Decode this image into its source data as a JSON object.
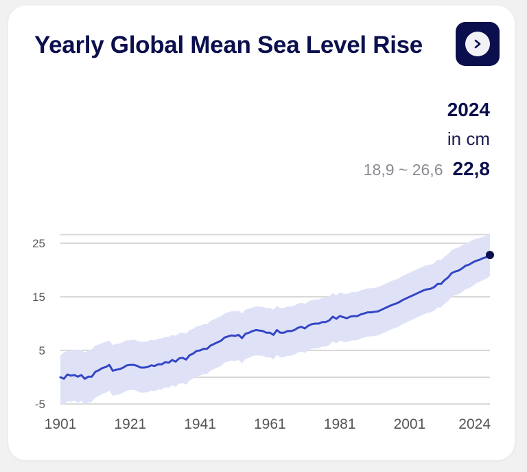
{
  "card": {
    "title": "Yearly Global Mean Sea Level Rise",
    "next_button_label": "Next",
    "next_icon": "chevron-right-icon"
  },
  "summary": {
    "year": "2024",
    "unit": "in cm",
    "range": "18,9 ~ 26,6",
    "value": "22,8"
  },
  "colors": {
    "title": "#0b0f4d",
    "line": "#3346c4",
    "band": "#dfe2f7",
    "endpoint": "#0b0f4d",
    "grid": "#d8d8d8"
  },
  "chart_data": {
    "type": "area",
    "title": "Yearly Global Mean Sea Level Rise",
    "xlabel": "",
    "ylabel": "cm",
    "xlim": [
      1901,
      2024
    ],
    "ylim": [
      -5,
      26.6
    ],
    "y_ticks": [
      25,
      15,
      5,
      -5
    ],
    "y_gridlines": [
      26.6,
      25,
      15,
      5,
      0,
      -5
    ],
    "x_ticks": [
      "1901",
      "1921",
      "1941",
      "1961",
      "1981",
      "2001",
      "2024"
    ],
    "grid": true,
    "highlight": {
      "year": 2024,
      "value": 22.8,
      "lower": 18.9,
      "upper": 26.6
    },
    "x_start": 1901,
    "series": [
      {
        "name": "mean",
        "values": [
          0.0,
          -0.3,
          0.5,
          0.3,
          0.4,
          0.1,
          0.4,
          -0.3,
          0.1,
          0.1,
          1.0,
          1.3,
          1.7,
          1.9,
          2.3,
          1.2,
          1.4,
          1.5,
          1.8,
          2.2,
          2.3,
          2.3,
          2.1,
          1.8,
          1.8,
          1.9,
          2.2,
          2.1,
          2.4,
          2.4,
          2.8,
          2.7,
          3.2,
          2.9,
          3.5,
          3.6,
          3.3,
          4.1,
          4.4,
          4.9,
          5.0,
          5.3,
          5.3,
          5.9,
          6.2,
          6.5,
          6.8,
          7.4,
          7.6,
          7.8,
          7.7,
          7.9,
          7.3,
          8.1,
          8.3,
          8.6,
          8.8,
          8.7,
          8.6,
          8.3,
          8.3,
          7.9,
          8.8,
          8.3,
          8.3,
          8.6,
          8.6,
          8.8,
          9.2,
          9.4,
          9.1,
          9.6,
          9.9,
          10.0,
          10.0,
          10.3,
          10.3,
          10.6,
          11.3,
          10.9,
          11.4,
          11.2,
          11.0,
          11.3,
          11.4,
          11.4,
          11.7,
          11.9,
          12.1,
          12.1,
          12.2,
          12.3,
          12.6,
          12.9,
          13.2,
          13.5,
          13.7,
          14.0,
          14.4,
          14.7,
          15.0,
          15.3,
          15.6,
          15.9,
          16.2,
          16.4,
          16.5,
          16.8,
          17.4,
          17.4,
          18.1,
          18.6,
          19.4,
          19.7,
          19.9,
          20.3,
          20.8,
          21.0,
          21.4,
          21.7,
          21.9,
          22.2,
          22.4,
          22.8
        ]
      },
      {
        "name": "lower",
        "values": [
          -4.9,
          -5.1,
          -4.5,
          -4.6,
          -4.4,
          -4.8,
          -4.4,
          -5.1,
          -4.7,
          -4.6,
          -3.8,
          -3.5,
          -3.1,
          -2.9,
          -2.5,
          -3.5,
          -3.3,
          -3.2,
          -2.9,
          -2.5,
          -2.4,
          -2.4,
          -2.6,
          -2.9,
          -2.9,
          -2.8,
          -2.5,
          -2.6,
          -2.3,
          -2.3,
          -1.9,
          -2.0,
          -1.5,
          -1.8,
          -1.2,
          -1.1,
          -1.4,
          -0.6,
          -0.3,
          0.2,
          0.3,
          0.6,
          0.6,
          1.2,
          1.5,
          1.8,
          2.1,
          2.7,
          2.9,
          3.1,
          3.0,
          3.2,
          2.6,
          3.4,
          3.6,
          3.9,
          4.1,
          4.0,
          4.0,
          3.7,
          3.7,
          3.3,
          4.2,
          3.7,
          3.7,
          4.0,
          4.0,
          4.2,
          4.6,
          4.8,
          4.5,
          5.0,
          5.3,
          5.4,
          5.4,
          5.7,
          5.7,
          6.0,
          6.7,
          6.3,
          6.8,
          6.6,
          6.5,
          6.8,
          6.9,
          6.9,
          7.2,
          7.4,
          7.6,
          7.6,
          7.7,
          7.8,
          8.1,
          8.4,
          8.7,
          9.0,
          9.2,
          9.5,
          9.9,
          10.2,
          10.5,
          10.8,
          11.1,
          11.4,
          11.7,
          12.0,
          12.1,
          12.4,
          13.0,
          13.0,
          13.7,
          14.2,
          15.0,
          15.3,
          15.5,
          15.9,
          16.4,
          16.6,
          17.0,
          17.5,
          17.8,
          18.1,
          18.4,
          18.9
        ]
      },
      {
        "name": "upper",
        "values": [
          4.1,
          4.6,
          5.0,
          4.8,
          5.2,
          5.0,
          5.1,
          4.6,
          5.0,
          5.2,
          5.9,
          6.1,
          6.4,
          6.6,
          6.9,
          6.0,
          6.2,
          6.3,
          6.6,
          6.9,
          6.9,
          7.0,
          6.8,
          6.6,
          6.6,
          6.7,
          7.0,
          6.9,
          7.2,
          7.2,
          7.5,
          7.5,
          7.9,
          7.7,
          8.2,
          8.3,
          8.1,
          8.8,
          9.0,
          9.5,
          9.6,
          9.9,
          9.9,
          10.5,
          10.8,
          11.1,
          11.4,
          11.9,
          12.1,
          12.3,
          12.3,
          12.4,
          11.9,
          12.6,
          12.8,
          13.0,
          13.2,
          13.2,
          13.1,
          12.9,
          12.9,
          12.6,
          13.3,
          12.9,
          12.9,
          13.2,
          13.2,
          13.4,
          13.7,
          13.9,
          13.7,
          14.1,
          14.4,
          14.5,
          14.5,
          14.8,
          14.8,
          15.1,
          15.7,
          15.3,
          15.8,
          15.6,
          15.5,
          15.8,
          15.9,
          15.9,
          16.2,
          16.4,
          16.6,
          16.6,
          16.7,
          16.8,
          17.1,
          17.4,
          17.7,
          18.0,
          18.2,
          18.5,
          18.9,
          19.2,
          19.5,
          19.8,
          20.1,
          20.4,
          20.7,
          20.9,
          21.0,
          21.3,
          21.9,
          21.9,
          22.5,
          23.0,
          23.7,
          24.0,
          24.2,
          24.6,
          25.0,
          25.2,
          25.6,
          25.8,
          26.0,
          26.2,
          26.4,
          26.6
        ]
      }
    ]
  }
}
